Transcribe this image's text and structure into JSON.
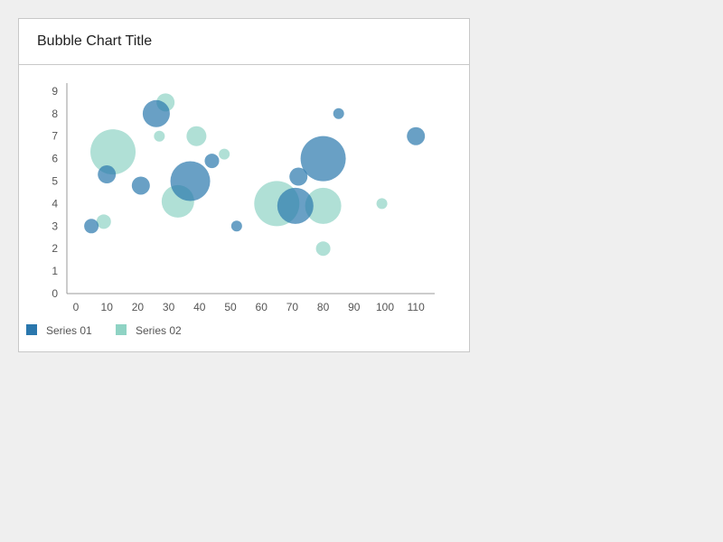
{
  "title": "Bubble Chart Title",
  "colors": {
    "series01": "#2a77ad",
    "series02": "#8fd3c4",
    "axis": "#999999"
  },
  "chart_data": {
    "type": "scatter",
    "subtype": "bubble",
    "title": "Bubble Chart Title",
    "xlabel": "",
    "ylabel": "",
    "xlim": [
      0,
      115
    ],
    "ylim": [
      0,
      9.3
    ],
    "x_ticks": [
      0,
      10,
      20,
      30,
      40,
      50,
      60,
      70,
      80,
      90,
      100,
      110
    ],
    "y_ticks": [
      0,
      1,
      2,
      3,
      4,
      5,
      6,
      7,
      8,
      9
    ],
    "grid": false,
    "legend": "bottom-left",
    "series": [
      {
        "name": "Series 01",
        "color": "#2a77ad",
        "points": [
          {
            "x": 5,
            "y": 3,
            "size": 8
          },
          {
            "x": 10,
            "y": 5.3,
            "size": 10
          },
          {
            "x": 21,
            "y": 4.8,
            "size": 10
          },
          {
            "x": 26,
            "y": 8,
            "size": 15
          },
          {
            "x": 37,
            "y": 5,
            "size": 22
          },
          {
            "x": 44,
            "y": 5.9,
            "size": 8
          },
          {
            "x": 52,
            "y": 3,
            "size": 6
          },
          {
            "x": 71,
            "y": 3.9,
            "size": 20
          },
          {
            "x": 72,
            "y": 5.2,
            "size": 10
          },
          {
            "x": 80,
            "y": 6,
            "size": 25
          },
          {
            "x": 85,
            "y": 8,
            "size": 6
          },
          {
            "x": 110,
            "y": 7,
            "size": 10
          }
        ]
      },
      {
        "name": "Series 02",
        "color": "#8fd3c4",
        "points": [
          {
            "x": 9,
            "y": 3.2,
            "size": 8
          },
          {
            "x": 12,
            "y": 6.3,
            "size": 25
          },
          {
            "x": 27,
            "y": 7,
            "size": 6
          },
          {
            "x": 29,
            "y": 8.5,
            "size": 10
          },
          {
            "x": 33,
            "y": 4.1,
            "size": 18
          },
          {
            "x": 39,
            "y": 7,
            "size": 11
          },
          {
            "x": 48,
            "y": 6.2,
            "size": 6
          },
          {
            "x": 65,
            "y": 4,
            "size": 25
          },
          {
            "x": 80,
            "y": 3.9,
            "size": 20
          },
          {
            "x": 80,
            "y": 2,
            "size": 8
          },
          {
            "x": 99,
            "y": 4,
            "size": 6
          }
        ]
      }
    ]
  }
}
